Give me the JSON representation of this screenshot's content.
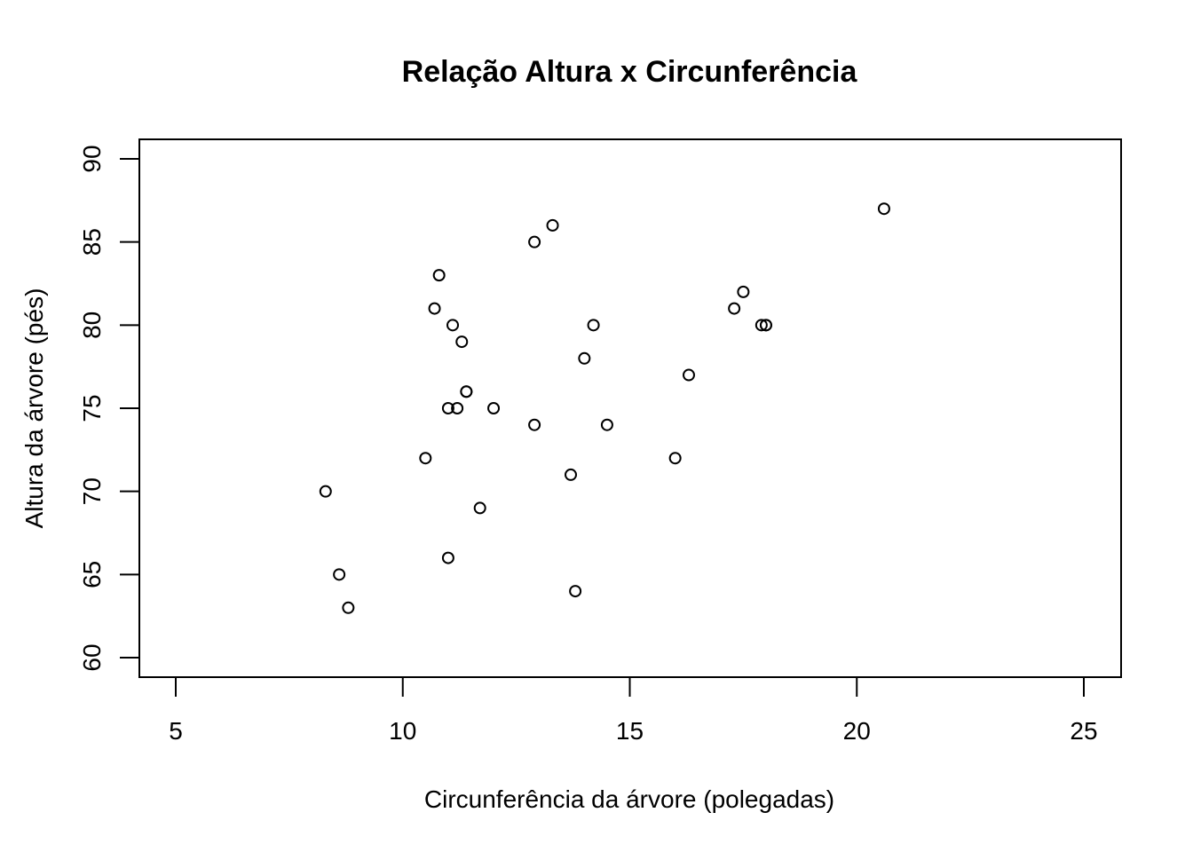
{
  "chart_data": {
    "type": "scatter",
    "title": "Relação Altura x Circunferência",
    "xlabel": "Circunferência da árvore (polegadas)",
    "ylabel": "Altura da árvore (pés)",
    "xlim": [
      5,
      25
    ],
    "ylim": [
      60,
      90
    ],
    "xticks": [
      "5",
      "10",
      "15",
      "20",
      "25"
    ],
    "yticks": [
      "60",
      "65",
      "70",
      "75",
      "80",
      "85",
      "90"
    ],
    "marker": "open-circle",
    "grid": false,
    "points": [
      {
        "x": 8.3,
        "y": 70
      },
      {
        "x": 8.6,
        "y": 65
      },
      {
        "x": 8.8,
        "y": 63
      },
      {
        "x": 10.5,
        "y": 72
      },
      {
        "x": 10.7,
        "y": 81
      },
      {
        "x": 10.8,
        "y": 83
      },
      {
        "x": 11.0,
        "y": 66
      },
      {
        "x": 11.0,
        "y": 75
      },
      {
        "x": 11.1,
        "y": 80
      },
      {
        "x": 11.2,
        "y": 75
      },
      {
        "x": 11.3,
        "y": 79
      },
      {
        "x": 11.4,
        "y": 76
      },
      {
        "x": 11.4,
        "y": 76
      },
      {
        "x": 11.7,
        "y": 69
      },
      {
        "x": 12.0,
        "y": 75
      },
      {
        "x": 12.9,
        "y": 74
      },
      {
        "x": 12.9,
        "y": 85
      },
      {
        "x": 13.3,
        "y": 86
      },
      {
        "x": 13.7,
        "y": 71
      },
      {
        "x": 13.8,
        "y": 64
      },
      {
        "x": 14.0,
        "y": 78
      },
      {
        "x": 14.2,
        "y": 80
      },
      {
        "x": 14.5,
        "y": 74
      },
      {
        "x": 16.0,
        "y": 72
      },
      {
        "x": 16.3,
        "y": 77
      },
      {
        "x": 17.3,
        "y": 81
      },
      {
        "x": 17.5,
        "y": 82
      },
      {
        "x": 17.9,
        "y": 80
      },
      {
        "x": 18.0,
        "y": 80
      },
      {
        "x": 18.0,
        "y": 80
      },
      {
        "x": 20.6,
        "y": 87
      }
    ]
  }
}
